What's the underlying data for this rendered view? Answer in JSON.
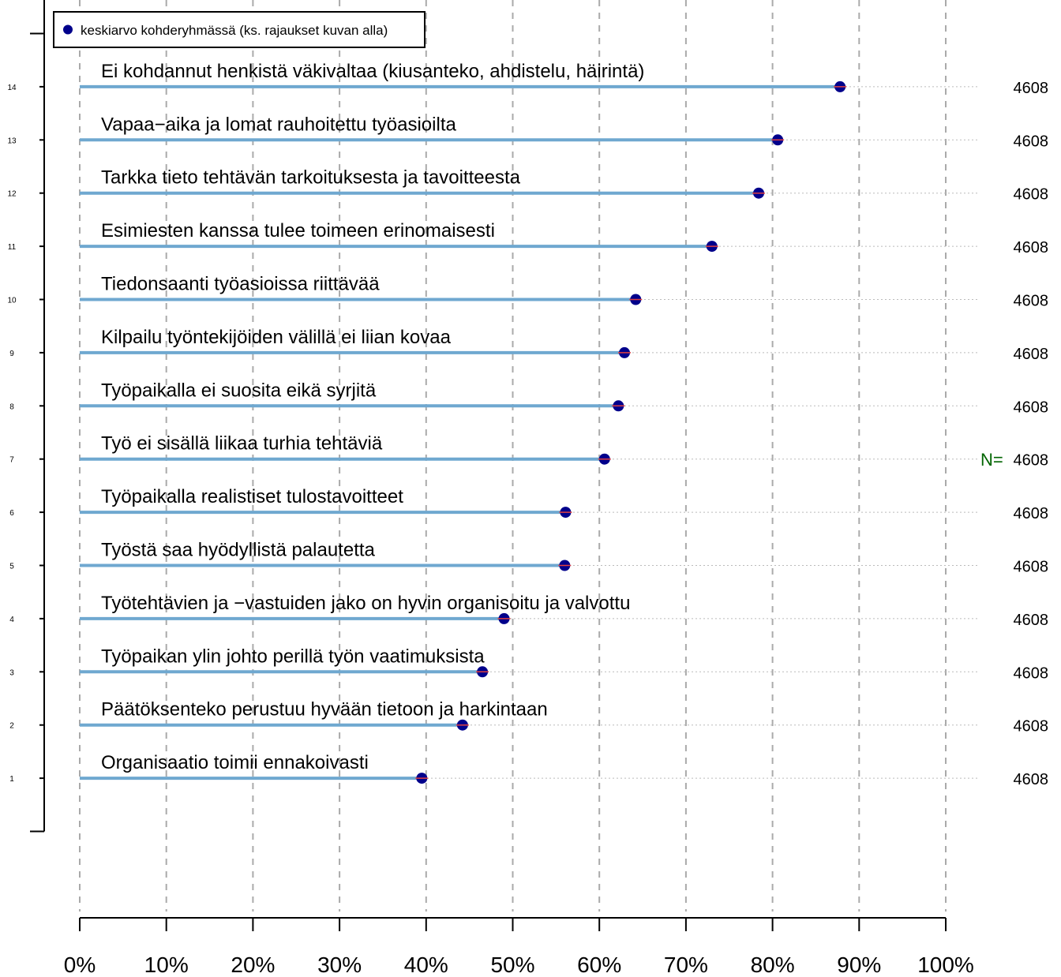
{
  "chart_data": {
    "type": "lollipop",
    "legend": {
      "label": "keskiarvo kohderyhmässä (ks. rajaukset kuvan alla)",
      "position": "top-left"
    },
    "n_label": "N=",
    "x_ticks": [
      "0%",
      "10%",
      "20%",
      "30%",
      "40%",
      "50%",
      "60%",
      "70%",
      "80%",
      "90%",
      "100%"
    ],
    "xlim": [
      0,
      100
    ],
    "ylim": [
      0,
      16
    ],
    "grid": true,
    "items": [
      {
        "index": 14,
        "label": "Ei kohdannut henkistä väkivaltaa (kiusanteko, ahdistelu, häirintä)",
        "value": 87.8,
        "n": "4608"
      },
      {
        "index": 13,
        "label": "Vapaa−aika ja lomat rauhoitettu työasioilta",
        "value": 80.6,
        "n": "4608"
      },
      {
        "index": 12,
        "label": "Tarkka tieto tehtävän tarkoituksesta ja tavoitteesta",
        "value": 78.4,
        "n": "4608"
      },
      {
        "index": 11,
        "label": "Esimiesten kanssa tulee toimeen erinomaisesti",
        "value": 73.0,
        "n": "4608"
      },
      {
        "index": 10,
        "label": "Tiedonsaanti työasioissa riittävää",
        "value": 64.2,
        "n": "4608"
      },
      {
        "index": 9,
        "label": "Kilpailu työntekijöiden välillä ei liian kovaa",
        "value": 62.9,
        "n": "4608"
      },
      {
        "index": 8,
        "label": "Työpaikalla ei suosita eikä syrjitä",
        "value": 62.2,
        "n": "4608"
      },
      {
        "index": 7,
        "label": "Työ ei sisällä liikaa turhia tehtäviä",
        "value": 60.6,
        "n": "4608"
      },
      {
        "index": 6,
        "label": "Työpaikalla realistiset tulostavoitteet",
        "value": 56.1,
        "n": "4608"
      },
      {
        "index": 5,
        "label": "Työstä saa hyödyllistä palautetta",
        "value": 56.0,
        "n": "4608"
      },
      {
        "index": 4,
        "label": "Työtehtävien ja −vastuiden jako on hyvin organisoitu ja valvottu",
        "value": 49.0,
        "n": "4608"
      },
      {
        "index": 3,
        "label": "Työpaikan ylin johto perillä työn vaatimuksista",
        "value": 46.5,
        "n": "4608"
      },
      {
        "index": 2,
        "label": "Päätöksenteko perustuu hyvään tietoon ja harkintaan",
        "value": 44.2,
        "n": "4608"
      },
      {
        "index": 1,
        "label": "Organisaatio toimii ennakoivasti",
        "value": 39.5,
        "n": "4608"
      }
    ],
    "colors": {
      "stem": "#6fa8d0",
      "point": "#00008b",
      "point_accent": "#e04040",
      "grid": "#aaaaaa",
      "n_label": "#006400",
      "axis": "#000000"
    }
  }
}
